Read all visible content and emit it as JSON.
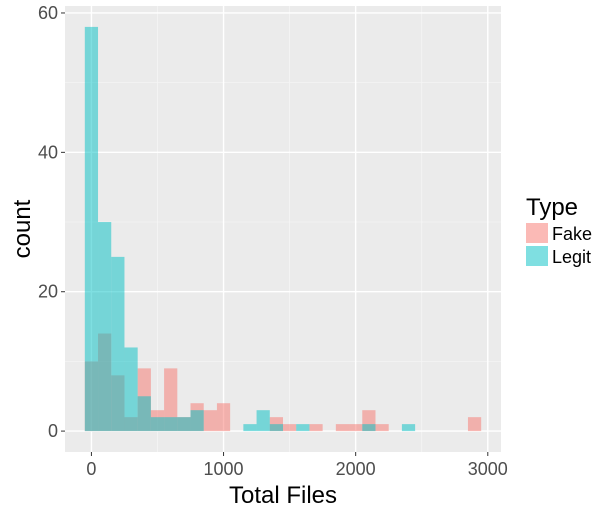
{
  "chart_data": {
    "type": "histogram",
    "xlabel": "Total Files",
    "ylabel": "count",
    "xlim": [
      -200,
      3100
    ],
    "ylim": [
      -3,
      61
    ],
    "x_ticks": [
      0,
      1000,
      2000,
      3000
    ],
    "y_ticks": [
      0,
      20,
      40,
      60
    ],
    "x_tick_labels": [
      "0",
      "1000",
      "2000",
      "3000"
    ],
    "y_tick_labels": [
      "0",
      "20",
      "40",
      "60"
    ],
    "bin_width": 100,
    "grid": true,
    "legend": {
      "title": "Type",
      "position": "right"
    },
    "series": [
      {
        "name": "Fake",
        "color": "#F8766D",
        "alpha": 0.5,
        "bins": [
          {
            "x": 0,
            "count": 10
          },
          {
            "x": 100,
            "count": 14
          },
          {
            "x": 200,
            "count": 8
          },
          {
            "x": 300,
            "count": 2
          },
          {
            "x": 400,
            "count": 9
          },
          {
            "x": 500,
            "count": 3
          },
          {
            "x": 600,
            "count": 9
          },
          {
            "x": 700,
            "count": 2
          },
          {
            "x": 800,
            "count": 4
          },
          {
            "x": 900,
            "count": 3
          },
          {
            "x": 1000,
            "count": 4
          },
          {
            "x": 1400,
            "count": 2
          },
          {
            "x": 1500,
            "count": 1
          },
          {
            "x": 1700,
            "count": 1
          },
          {
            "x": 1900,
            "count": 1
          },
          {
            "x": 2000,
            "count": 1
          },
          {
            "x": 2100,
            "count": 3
          },
          {
            "x": 2200,
            "count": 1
          },
          {
            "x": 2900,
            "count": 2
          }
        ]
      },
      {
        "name": "Legit",
        "color": "#00BFC4",
        "alpha": 0.5,
        "bins": [
          {
            "x": 0,
            "count": 58
          },
          {
            "x": 100,
            "count": 30
          },
          {
            "x": 200,
            "count": 25
          },
          {
            "x": 300,
            "count": 12
          },
          {
            "x": 400,
            "count": 5
          },
          {
            "x": 500,
            "count": 2
          },
          {
            "x": 600,
            "count": 2
          },
          {
            "x": 700,
            "count": 2
          },
          {
            "x": 800,
            "count": 3
          },
          {
            "x": 1200,
            "count": 1
          },
          {
            "x": 1300,
            "count": 3
          },
          {
            "x": 1400,
            "count": 1
          },
          {
            "x": 1600,
            "count": 1
          },
          {
            "x": 2100,
            "count": 1
          },
          {
            "x": 2400,
            "count": 1
          }
        ]
      }
    ]
  }
}
